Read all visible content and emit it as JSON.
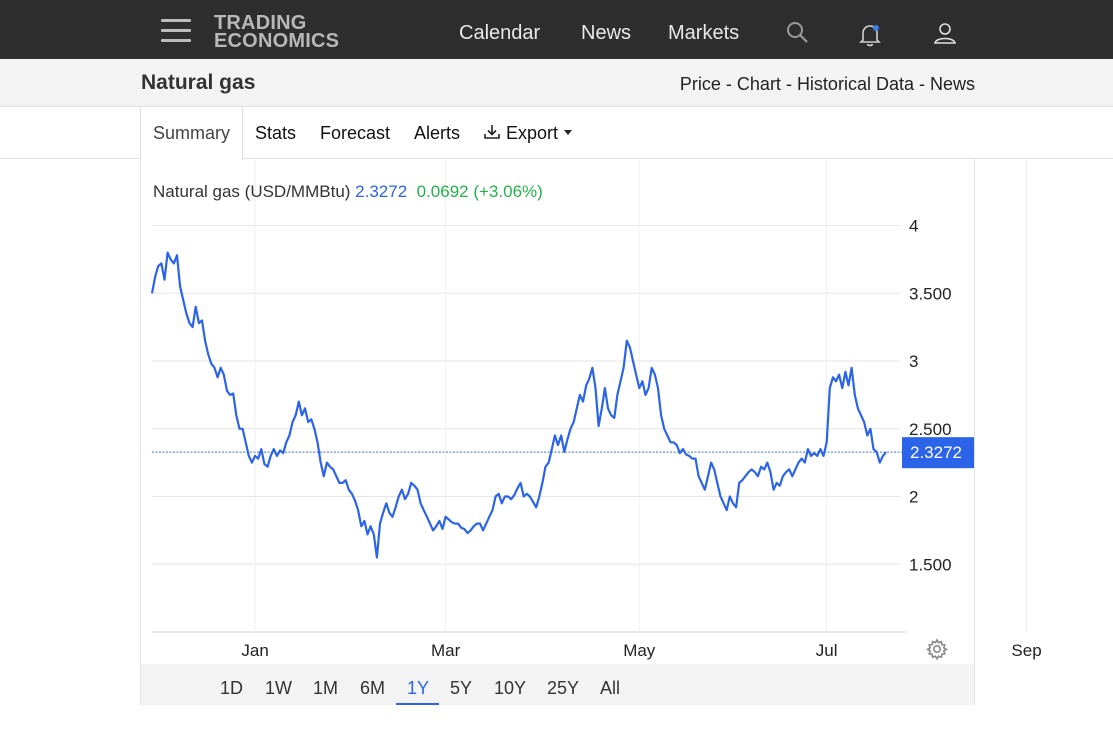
{
  "header": {
    "logo_line1": "TRADING",
    "logo_line2": "ECONOMICS",
    "nav": [
      "Calendar",
      "News",
      "Markets"
    ],
    "icons": [
      "menu-icon",
      "search-icon",
      "bell-icon",
      "user-icon"
    ]
  },
  "subheader": {
    "title": "Natural gas",
    "links": [
      "Price",
      "Chart",
      "Historical Data",
      "News"
    ],
    "separator": " - "
  },
  "tabs": [
    "Summary",
    "Stats",
    "Forecast",
    "Alerts",
    "Export"
  ],
  "chart_header": {
    "name": "Natural gas (USD/MMBtu)",
    "value": "2.3272",
    "change": "0.0692 (+3.06%)"
  },
  "ranges": [
    "1D",
    "1W",
    "1M",
    "6M",
    "1Y",
    "5Y",
    "10Y",
    "25Y",
    "All"
  ],
  "active_range": "1Y",
  "colors": {
    "line": "#2b64e8",
    "positive": "#22b34a",
    "topbar": "#2e2e2e"
  },
  "chart_data": {
    "type": "line",
    "title": "",
    "xlabel": "",
    "ylabel": "",
    "y_ticks": [
      "4",
      "3.500",
      "3",
      "2.500",
      "2",
      "1.500"
    ],
    "y_tick_values": [
      4,
      3.5,
      3,
      2.5,
      2,
      1.5
    ],
    "x_ticks": [
      "Jan",
      "Mar",
      "May",
      "Jul",
      "Sep"
    ],
    "x_tick_index": [
      33,
      94,
      156,
      216,
      280
    ],
    "ylim": [
      1.0,
      4.0
    ],
    "current_value_label": "2.3272",
    "current_value": 2.3272,
    "grid": true,
    "series": [
      {
        "values": [
          3.5,
          3.62,
          3.7,
          3.72,
          3.6,
          3.8,
          3.75,
          3.72,
          3.78,
          3.55,
          3.45,
          3.35,
          3.28,
          3.25,
          3.4,
          3.28,
          3.3,
          3.15,
          3.05,
          2.98,
          2.95,
          2.88,
          2.95,
          2.9,
          2.78,
          2.75,
          2.76,
          2.6,
          2.5,
          2.5,
          2.4,
          2.3,
          2.25,
          2.3,
          2.28,
          2.35,
          2.24,
          2.22,
          2.3,
          2.35,
          2.3,
          2.34,
          2.32,
          2.4,
          2.45,
          2.55,
          2.6,
          2.7,
          2.6,
          2.65,
          2.55,
          2.57,
          2.5,
          2.4,
          2.25,
          2.15,
          2.25,
          2.22,
          2.2,
          2.15,
          2.1,
          2.1,
          2.12,
          2.05,
          2.02,
          1.97,
          1.9,
          1.78,
          1.82,
          1.72,
          1.78,
          1.72,
          1.55,
          1.8,
          1.88,
          1.95,
          1.88,
          1.85,
          1.92,
          2.0,
          2.05,
          1.98,
          2.02,
          2.1,
          2.08,
          2.05,
          1.95,
          1.9,
          1.85,
          1.8,
          1.75,
          1.78,
          1.82,
          1.76,
          1.85,
          1.83,
          1.81,
          1.8,
          1.8,
          1.77,
          1.76,
          1.73,
          1.75,
          1.78,
          1.8,
          1.8,
          1.75,
          1.8,
          1.85,
          1.9,
          2.0,
          2.02,
          1.95,
          2.0,
          2.0,
          1.98,
          2.01,
          2.06,
          2.1,
          2.0,
          2.02,
          2.0,
          1.96,
          1.92,
          2.0,
          2.1,
          2.22,
          2.25,
          2.35,
          2.45,
          2.38,
          2.45,
          2.33,
          2.42,
          2.5,
          2.55,
          2.65,
          2.75,
          2.7,
          2.82,
          2.87,
          2.95,
          2.8,
          2.52,
          2.65,
          2.8,
          2.65,
          2.6,
          2.58,
          2.75,
          2.85,
          2.95,
          3.15,
          3.1,
          3.0,
          2.9,
          2.8,
          2.85,
          2.75,
          2.8,
          2.95,
          2.9,
          2.8,
          2.6,
          2.5,
          2.45,
          2.4,
          2.4,
          2.38,
          2.32,
          2.35,
          2.31,
          2.3,
          2.28,
          2.28,
          2.15,
          2.1,
          2.05,
          2.15,
          2.25,
          2.2,
          2.1,
          2.0,
          1.95,
          1.9,
          2.0,
          1.95,
          1.92,
          2.1,
          2.12,
          2.15,
          2.18,
          2.2,
          2.18,
          2.15,
          2.22,
          2.2,
          2.25,
          2.18,
          2.05,
          2.1,
          2.08,
          2.15,
          2.18,
          2.2,
          2.15,
          2.2,
          2.25,
          2.28,
          2.25,
          2.35,
          2.3,
          2.32,
          2.3,
          2.35,
          2.3,
          2.4,
          2.8,
          2.88,
          2.85,
          2.9,
          2.8,
          2.92,
          2.82,
          2.95,
          2.75,
          2.65,
          2.6,
          2.55,
          2.45,
          2.5,
          2.35,
          2.33,
          2.25,
          2.3,
          2.3272
        ]
      }
    ]
  }
}
